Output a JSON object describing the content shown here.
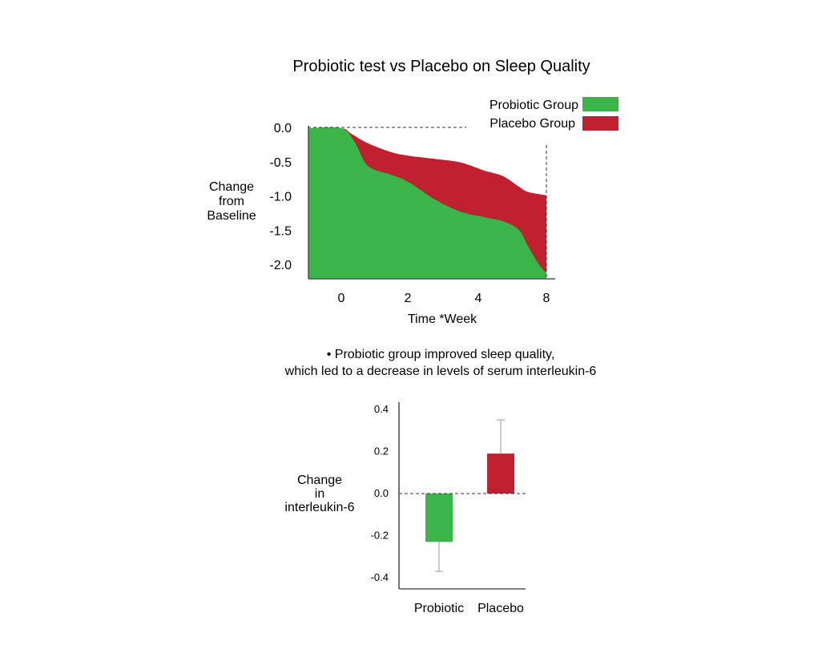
{
  "title": "Probiotic test vs Placebo on Sleep Quality",
  "note": {
    "line1": "• Probiotic group improved sleep quality,",
    "line2": "which led to a decrease in levels of serum interleukin-6"
  },
  "colors": {
    "probiotic": "#3bb54a",
    "placebo": "#c12031",
    "axis": "#555555",
    "errorbar": "#aaaaaa"
  },
  "chart_data": [
    {
      "type": "area",
      "xlabel": "Time *Week",
      "ylabel": [
        "Change",
        "from",
        "Baseline"
      ],
      "xticks": [
        0,
        2,
        4,
        8
      ],
      "yticks": [
        "0.0",
        "-0.5",
        "-1.0",
        "-1.5",
        "-2.0"
      ],
      "ylim": [
        -2.15,
        0.05
      ],
      "legend": [
        "Probiotic Group",
        "Placebo Group"
      ],
      "legend_position": "top-right",
      "series": [
        {
          "name": "Probiotic Group",
          "points": [
            [
              -0.9,
              0.0
            ],
            [
              0,
              0.0
            ],
            [
              0.4,
              -0.2
            ],
            [
              0.8,
              -0.55
            ],
            [
              1.5,
              -0.68
            ],
            [
              2.0,
              -0.78
            ],
            [
              2.8,
              -1.05
            ],
            [
              3.5,
              -1.22
            ],
            [
              4.2,
              -1.3
            ],
            [
              4.8,
              -1.36
            ],
            [
              5.3,
              -1.48
            ],
            [
              5.6,
              -1.72
            ],
            [
              5.9,
              -1.95
            ],
            [
              6.1,
              -2.07
            ],
            [
              6.2,
              -2.1
            ]
          ]
        },
        {
          "name": "Placebo Group",
          "points": [
            [
              -0.9,
              0.0
            ],
            [
              0,
              0.0
            ],
            [
              0.3,
              -0.08
            ],
            [
              0.8,
              -0.22
            ],
            [
              1.5,
              -0.35
            ],
            [
              2.0,
              -0.4
            ],
            [
              2.8,
              -0.45
            ],
            [
              3.5,
              -0.5
            ],
            [
              4.2,
              -0.62
            ],
            [
              4.8,
              -0.7
            ],
            [
              5.3,
              -0.85
            ],
            [
              5.6,
              -0.93
            ],
            [
              6.2,
              -0.98
            ]
          ]
        }
      ]
    },
    {
      "type": "bar",
      "ylabel": [
        "Change",
        "in",
        "interleukin-6"
      ],
      "categories": [
        "Probiotic",
        "Placebo"
      ],
      "values": [
        -0.23,
        0.19
      ],
      "error_low": [
        -0.37,
        0.0
      ],
      "error_high": [
        0.0,
        0.35
      ],
      "yticks": [
        "0.4",
        "0.2",
        "0.0",
        "-0.2",
        "-0.4"
      ],
      "ylim": [
        -0.45,
        0.45
      ]
    }
  ]
}
